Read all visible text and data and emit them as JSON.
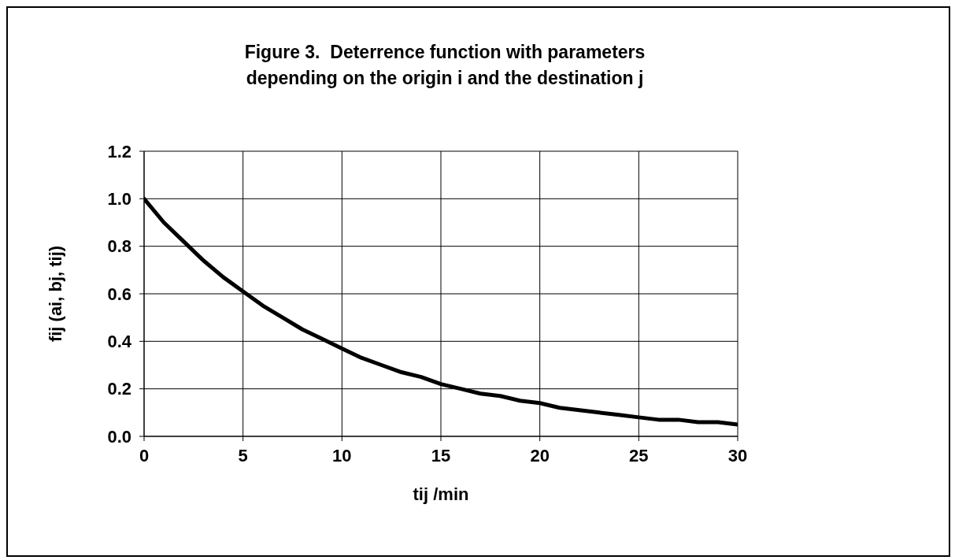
{
  "chart_data": {
    "type": "line",
    "title": "Figure 3.  Deterrence function with parameters depending on the origin i and the destination j",
    "xlabel": "tij /min",
    "ylabel": "fij (ai, bj, tij)",
    "x": [
      0,
      1,
      2,
      3,
      4,
      5,
      6,
      7,
      8,
      9,
      10,
      11,
      12,
      13,
      14,
      15,
      16,
      17,
      18,
      19,
      20,
      21,
      22,
      23,
      24,
      25,
      26,
      27,
      28,
      29,
      30
    ],
    "series": [
      {
        "color": "#000000",
        "values": [
          1.0,
          0.9,
          0.82,
          0.74,
          0.67,
          0.61,
          0.55,
          0.5,
          0.45,
          0.41,
          0.37,
          0.33,
          0.3,
          0.27,
          0.25,
          0.22,
          0.2,
          0.18,
          0.17,
          0.15,
          0.14,
          0.12,
          0.11,
          0.1,
          0.09,
          0.08,
          0.07,
          0.07,
          0.06,
          0.06,
          0.05
        ]
      }
    ],
    "xlim": [
      0,
      30
    ],
    "xticks": [
      0,
      5,
      10,
      15,
      20,
      25,
      30
    ],
    "ylim": [
      0,
      1.2
    ],
    "yticks": [
      {
        "value": 0,
        "label": "0.0"
      },
      {
        "value": 0.2,
        "label": "0.2"
      },
      {
        "value": 0.4,
        "label": "0.4"
      },
      {
        "value": 0.6,
        "label": "0.6"
      },
      {
        "value": 0.8,
        "label": "0.8"
      },
      {
        "value": 1.0,
        "label": "1.0"
      },
      {
        "value": 1.2,
        "label": "1.2"
      }
    ],
    "grid": true,
    "marker": "none",
    "line_style": "solid",
    "legend": false
  }
}
